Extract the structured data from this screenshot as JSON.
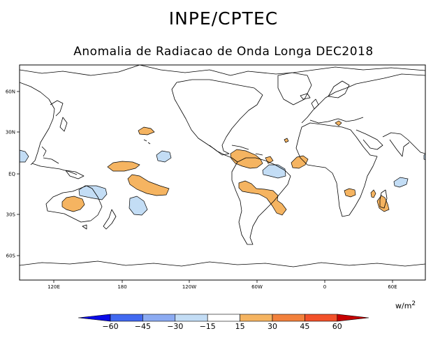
{
  "header": {
    "title": "INPE/CPTEC",
    "subtitle": "Anomalia de Radiacao de Onda Longa DEC2018"
  },
  "map": {
    "lon_labels": [
      "120E",
      "180",
      "120W",
      "60W",
      "0",
      "60E"
    ],
    "lat_labels": [
      "60N",
      "30N",
      "EQ",
      "30S",
      "60S"
    ]
  },
  "colorbar": {
    "units": "w/m",
    "units_power": "2",
    "ticks": [
      "−60",
      "−45",
      "−30",
      "−15",
      "15",
      "30",
      "45",
      "60"
    ],
    "colors": [
      "#0a0ae6",
      "#4169f0",
      "#8cabf2",
      "#c3ddf5",
      "#ffffff",
      "#f5b461",
      "#f2813c",
      "#f2512a",
      "#c60000"
    ]
  }
}
